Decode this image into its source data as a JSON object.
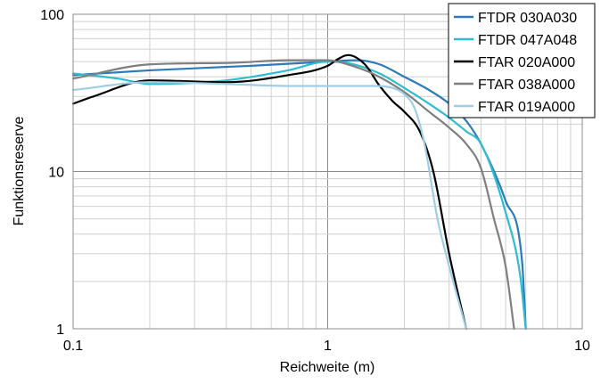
{
  "chart_data": {
    "type": "line",
    "title": "",
    "xlabel": "Reichweite (m)",
    "ylabel": "Funktionsreserve",
    "xscale": "log",
    "yscale": "log",
    "xlim": [
      0.1,
      10
    ],
    "ylim": [
      1,
      100
    ],
    "grid": true,
    "legend_position": "top-right",
    "x_ticks": [
      {
        "value": 0.1,
        "label": "0.1"
      },
      {
        "value": 1,
        "label": "1"
      },
      {
        "value": 10,
        "label": "10"
      }
    ],
    "y_ticks": [
      {
        "value": 1,
        "label": "1"
      },
      {
        "value": 10,
        "label": "10"
      },
      {
        "value": 100,
        "label": "100"
      }
    ],
    "series": [
      {
        "name": "FTDR 030A030",
        "color": "#2b7bba",
        "x": [
          0.1,
          0.2,
          0.5,
          1.0,
          1.3,
          1.6,
          2.0,
          2.5,
          3.0,
          3.5,
          4.0,
          5.0,
          5.8,
          6.0
        ],
        "y": [
          41,
          44,
          47,
          50,
          51,
          48,
          40,
          33,
          27,
          21,
          15,
          6.5,
          2.7,
          1.0
        ]
      },
      {
        "name": "FTDR 047A048",
        "color": "#2ebcd0",
        "x": [
          0.1,
          0.15,
          0.2,
          0.4,
          0.7,
          1.0,
          1.2,
          1.6,
          2.0,
          2.5,
          3.0,
          3.5,
          4.0,
          5.0,
          5.7,
          6.0
        ],
        "y": [
          42,
          39,
          36,
          38,
          44,
          50,
          49,
          42,
          34,
          27,
          22,
          18,
          15,
          5.5,
          2.2,
          1.0
        ]
      },
      {
        "name": "FTAR 020A000",
        "color": "#000000",
        "x": [
          0.1,
          0.12,
          0.2,
          0.4,
          0.7,
          1.0,
          1.1,
          1.2,
          1.4,
          1.6,
          1.8,
          2.0,
          2.3,
          2.6,
          3.0,
          3.5
        ],
        "y": [
          27,
          30,
          38,
          37,
          41,
          47,
          52,
          55,
          48,
          35,
          28,
          24,
          18,
          10,
          3.0,
          1.0
        ]
      },
      {
        "name": "FTAR 038A000",
        "color": "#7f7f7f",
        "x": [
          0.1,
          0.2,
          0.4,
          0.7,
          1.0,
          1.2,
          1.5,
          2.0,
          2.5,
          3.0,
          3.5,
          4.0,
          4.5,
          5.0,
          5.4
        ],
        "y": [
          39,
          48,
          49,
          51,
          51,
          48,
          42,
          32,
          24,
          19,
          15,
          10.5,
          5.0,
          2.5,
          1.0
        ]
      },
      {
        "name": "FTAR 019A000",
        "color": "#9fcde4",
        "x": [
          0.1,
          0.2,
          0.4,
          0.7,
          1.0,
          1.5,
          1.8,
          2.0,
          2.2,
          2.4,
          2.7,
          3.0,
          3.5
        ],
        "y": [
          33,
          37,
          36,
          35,
          35,
          35,
          34,
          31,
          25,
          15,
          5.0,
          2.5,
          1.0
        ]
      }
    ]
  }
}
